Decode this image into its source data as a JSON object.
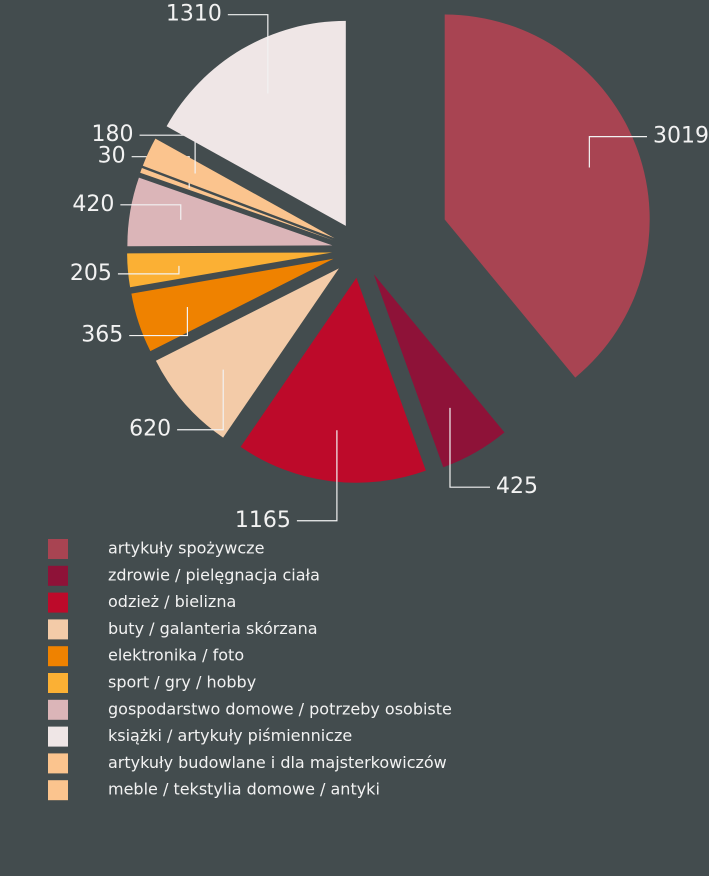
{
  "chart_data": {
    "type": "pie",
    "categories": [
      "artykuły spożywcze",
      "zdrowie / pielęgnacja ciała",
      "odzież / bielizna",
      "buty / galanteria skórzana",
      "elektronika / foto",
      "sport / gry / hobby",
      "gospodarstwo domowe / potrzeby osobiste",
      "książki / artykuły piśmiennicze",
      "artykuły budowlane i dla majsterkowiczów",
      "meble / tekstylia domowe / antyki"
    ],
    "values": [
      3019,
      425,
      1165,
      620,
      365,
      205,
      420,
      1310,
      180,
      30
    ],
    "colors": [
      "#a84452",
      "#8e1238",
      "#bd0a2a",
      "#f3cba8",
      "#ef8200",
      "#fbb034",
      "#dbb5b8",
      "#efe6e6",
      "#fbc48e",
      "#fbc48e"
    ]
  }
}
